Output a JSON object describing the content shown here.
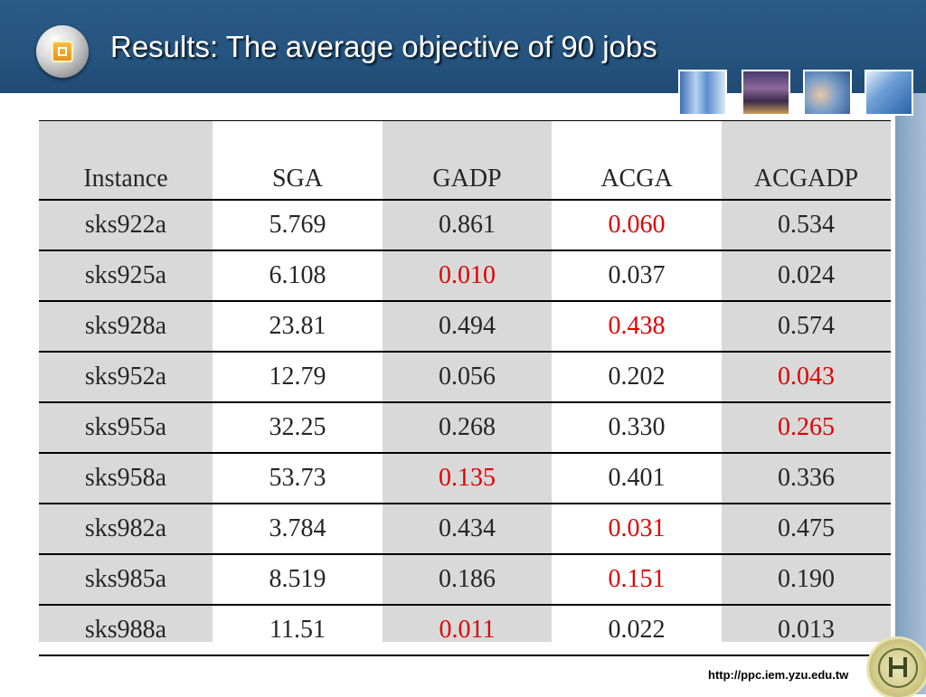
{
  "slide": {
    "title": "Results: The average objective of 90 jobs",
    "footer_url": "http://ppc.iem.yzu.edu.tw"
  },
  "colors": {
    "header_bar": "#25547f",
    "best_value": "#e00000",
    "shaded_column": "#d9d9d9"
  },
  "table": {
    "headers": [
      "Instance",
      "SGA",
      "GADP",
      "ACGA",
      "ACGADP"
    ],
    "rows": [
      {
        "cells": [
          "sks922a",
          "5.769",
          "0.861",
          "0.060",
          "0.534"
        ],
        "best_index": 3
      },
      {
        "cells": [
          "sks925a",
          "6.108",
          "0.010",
          "0.037",
          "0.024"
        ],
        "best_index": 2
      },
      {
        "cells": [
          "sks928a",
          "23.81",
          "0.494",
          "0.438",
          "0.574"
        ],
        "best_index": 3
      },
      {
        "cells": [
          "sks952a",
          "12.79",
          "0.056",
          "0.202",
          "0.043"
        ],
        "best_index": 4
      },
      {
        "cells": [
          "sks955a",
          "32.25",
          "0.268",
          "0.330",
          "0.265"
        ],
        "best_index": 4
      },
      {
        "cells": [
          "sks958a",
          "53.73",
          "0.135",
          "0.401",
          "0.336"
        ],
        "best_index": 2
      },
      {
        "cells": [
          "sks982a",
          "3.784",
          "0.434",
          "0.031",
          "0.475"
        ],
        "best_index": 3
      },
      {
        "cells": [
          "sks985a",
          "8.519",
          "0.186",
          "0.151",
          "0.190"
        ],
        "best_index": 3
      },
      {
        "cells": [
          "sks988a",
          "11.51",
          "0.011",
          "0.022",
          "0.013"
        ],
        "best_index": 2
      }
    ]
  }
}
